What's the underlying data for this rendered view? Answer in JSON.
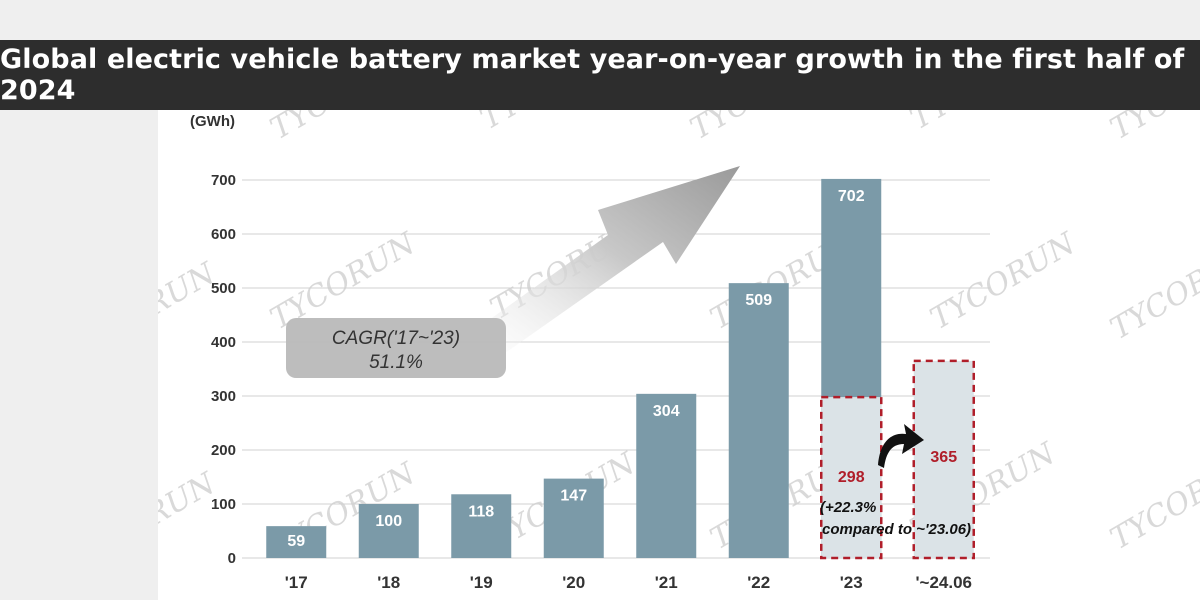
{
  "header": {
    "title": "Global electric vehicle battery market year-on-year growth in the first half of 2024"
  },
  "watermark": {
    "text": "TYCORUN"
  },
  "chart_data": {
    "type": "bar",
    "title": "Global electric vehicle battery market year-on-year growth in the first half of 2024",
    "unit_label": "(GWh)",
    "categories": [
      "'17",
      "'18",
      "'19",
      "'20",
      "'21",
      "'22",
      "'23",
      "'~24.06"
    ],
    "values": [
      59,
      100,
      118,
      147,
      304,
      509,
      702,
      365
    ],
    "value_labels": [
      "59",
      "100",
      "118",
      "147",
      "304",
      "509",
      "702",
      "365"
    ],
    "ylim": [
      0,
      700
    ],
    "yticks": [
      0,
      100,
      200,
      300,
      400,
      500,
      600,
      700
    ],
    "grid": true,
    "half_year_comparison": {
      "prior_category": "'23",
      "prior_value": 298,
      "prior_label": "298",
      "current_category": "'~24.06",
      "current_value": 365,
      "current_label": "365",
      "note_line1": "(+22.3%",
      "note_line2": "compared to ~'23.06)"
    },
    "cagr_box": {
      "line1": "CAGR('17~'23)",
      "line2": "51.1%"
    },
    "colors": {
      "bar": "#7b9aa8",
      "light_bar": "#dbe3e7",
      "dashed_outline": "#b01e2a",
      "red_label": "#b01e2a"
    }
  }
}
